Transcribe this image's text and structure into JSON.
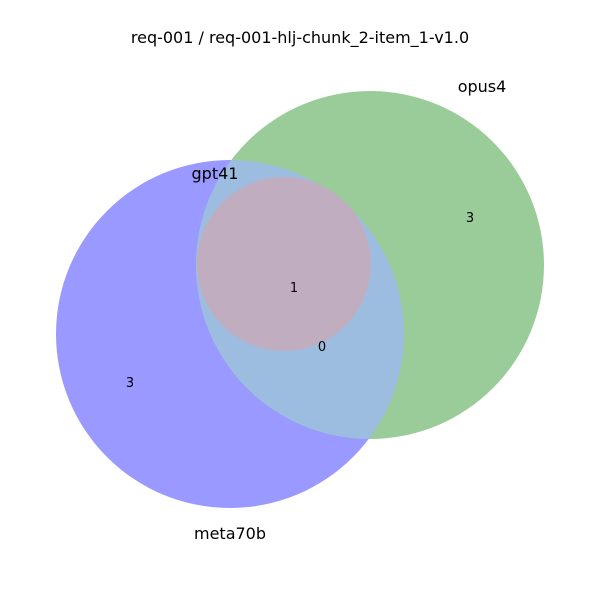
{
  "title": "req-001 / req-001-hlj-chunk_2-item_1-v1.0",
  "sets": {
    "meta70b": {
      "label": "meta70b",
      "color": "#9999ff"
    },
    "opus4": {
      "label": "opus4",
      "color": "#99cc99"
    },
    "gpt41": {
      "label": "gpt41",
      "color": "#c0aec0"
    }
  },
  "overlap_color": "#9cbde0",
  "regions": {
    "meta70b_only": "3",
    "opus4_only": "3",
    "meta70b_opus4_only": "0",
    "all_three": "1"
  }
}
